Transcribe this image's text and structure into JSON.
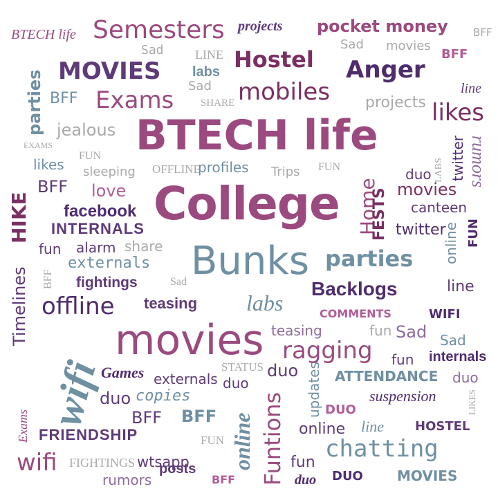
{
  "words": {
    "btech_life_big": "BTECH life",
    "college": "College",
    "movies_big": "movies",
    "bunks": "Bunks",
    "btech_life_small": "BTECH life",
    "semesters": "Semesters",
    "projects_top": "projects",
    "pocket_money": "pocket money",
    "bff_top_right": "BFF",
    "sad_1": "Sad",
    "line_1": "LINE",
    "hostel_1": "Hostel",
    "sad_2": "Sad",
    "movies_2": "movies",
    "bff_2": "BFF",
    "movies_caps": "MOVIES",
    "labs_1": "labs",
    "anger": "Anger",
    "parties_v": "parties",
    "bff_3": "BFF",
    "exams_1": "Exams",
    "sad_3": "Sad",
    "share_1": "SHARE",
    "mobiles": "mobiles",
    "line_2": "line",
    "projects_2": "projects",
    "likes_1": "likes",
    "jealous": "jealous",
    "exams_2": "EXAMS",
    "fun_1": "FUN",
    "twitter_1": "twitter",
    "rumors_1": "rumors",
    "likes_2": "likes",
    "sleeping": "sleeping",
    "offline_1": "OFFLINE",
    "profiles": "profiles",
    "trips": "Trips",
    "fun_2": "FUN",
    "labs_2": "LABS",
    "duo_1": "duo",
    "hike": "HIKE",
    "bff_4": "BFF",
    "love": "love",
    "home": "Home",
    "fests": "FESTS",
    "movies_3": "movies",
    "canteen": "canteen",
    "facebook": "facebook",
    "internals_1": "INTERNALS",
    "twitter_2": "twitter",
    "online_1": "online",
    "fun_3": "FUN",
    "fun_4": "fun",
    "alarm": "alarm",
    "share_2": "share",
    "externals_1": "externals",
    "parties_2": "parties",
    "timelines": "Timelines",
    "bff_5": "BFF",
    "fightings_1": "fightings",
    "sad_4": "Sad",
    "backlogs": "Backlogs",
    "line_3": "line",
    "offline_2": "offline",
    "teasing_1": "teasing",
    "labs_3": "labs",
    "comments": "COMMENTS",
    "wifi_1": "WIFI",
    "teasing_2": "teasing",
    "fun_5": "fun",
    "sad_5": "Sad",
    "sad_6": "Sad",
    "wifi_big": "wifi",
    "ragging": "ragging",
    "fun_6": "fun",
    "internals_2": "internals",
    "status": "STATUS",
    "duo_2": "duo",
    "games": "Games",
    "externals_2": "externals",
    "duo_3": "duo",
    "attendance": "ATTENDANCE",
    "duo_4": "duo",
    "duo_5": "duo",
    "copies": "copies",
    "updates": "updates",
    "suspension": "suspension",
    "likes_3": "LIKES",
    "exams_3": "Exams",
    "bff_6": "BFF",
    "bff_7": "BFF",
    "online_2": "online",
    "funtions": "Funtions",
    "duo_caps_1": "DUO",
    "friendship": "FRIENDSHIP",
    "online_3": "online",
    "line_4": "line",
    "hostel_2": "HOSTEL",
    "fun_7": "FUN",
    "chatting": "chatting",
    "wifi_2": "wifi",
    "fightings_2": "FIGHTINGS",
    "wtsapp": "wtsapp",
    "fun_8": "fun",
    "rumors_2": "rumors",
    "posts": "posts",
    "bff_8": "BFF",
    "duo_6": "duo",
    "duo_caps_2": "DUO",
    "movies_caps_2": "MOVIES"
  }
}
